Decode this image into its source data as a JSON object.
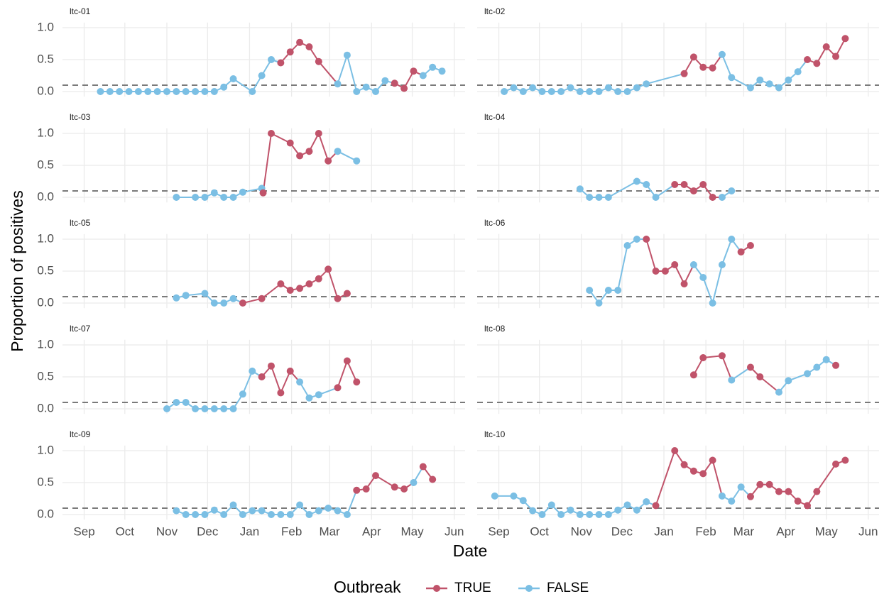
{
  "chart_data": {
    "type": "line",
    "x_label": "Date",
    "y_label": "Proportion of positives",
    "legend_title": "Outbreak",
    "series": [
      {
        "name": "TRUE",
        "color": "#c0536a"
      },
      {
        "name": "FALSE",
        "color": "#7bbfe4"
      }
    ],
    "xlim": [
      -16,
      281
    ],
    "xticks": [
      {
        "value": 0,
        "label": "Sep"
      },
      {
        "value": 30,
        "label": "Oct"
      },
      {
        "value": 61,
        "label": "Nov"
      },
      {
        "value": 91,
        "label": "Dec"
      },
      {
        "value": 122,
        "label": "Jan"
      },
      {
        "value": 153,
        "label": "Feb"
      },
      {
        "value": 181,
        "label": "Mar"
      },
      {
        "value": 212,
        "label": "Apr"
      },
      {
        "value": 242,
        "label": "May"
      },
      {
        "value": 273,
        "label": "Jun"
      }
    ],
    "ylim": [
      -0.08,
      1.08
    ],
    "yticks": [
      {
        "value": 0,
        "label": "0.0"
      },
      0.5,
      {
        "value": 1,
        "label": "1.0"
      }
    ],
    "threshold": 0.1,
    "grid": true,
    "facets": [
      {
        "title": "ltc-01",
        "x": [
          12,
          19,
          26,
          33,
          40,
          47,
          54,
          61,
          68,
          75,
          82,
          89,
          96,
          103,
          110,
          124,
          131,
          138,
          145,
          152,
          159,
          166,
          173,
          187,
          194,
          201,
          208,
          215,
          222,
          229,
          236,
          243,
          250,
          257,
          264
        ],
        "values": [
          0,
          0,
          0,
          0,
          0,
          0,
          0,
          0,
          0,
          0,
          0,
          0,
          0,
          0.07,
          0.2,
          0,
          0.25,
          0.5,
          0.45,
          0.62,
          0.77,
          0.7,
          0.47,
          0.12,
          0.57,
          0,
          0.07,
          0,
          0.17,
          0.13,
          0.05,
          0.32,
          0.25,
          0.38,
          0.32
        ],
        "outbreak": [
          "FALSE",
          "FALSE",
          "FALSE",
          "FALSE",
          "FALSE",
          "FALSE",
          "FALSE",
          "FALSE",
          "FALSE",
          "FALSE",
          "FALSE",
          "FALSE",
          "FALSE",
          "FALSE",
          "FALSE",
          "FALSE",
          "FALSE",
          "FALSE",
          "TRUE",
          "TRUE",
          "TRUE",
          "TRUE",
          "TRUE",
          "FALSE",
          "FALSE",
          "FALSE",
          "FALSE",
          "FALSE",
          "FALSE",
          "TRUE",
          "TRUE",
          "TRUE",
          "FALSE",
          "FALSE",
          "FALSE"
        ]
      },
      {
        "title": "ltc-02",
        "x": [
          4,
          11,
          18,
          25,
          32,
          39,
          46,
          53,
          60,
          67,
          74,
          81,
          88,
          95,
          102,
          109,
          137,
          144,
          151,
          158,
          165,
          172,
          186,
          193,
          200,
          207,
          214,
          221,
          228,
          235,
          242,
          249,
          256
        ],
        "values": [
          0,
          0.06,
          0,
          0.06,
          0,
          0,
          0,
          0.06,
          0,
          0,
          0,
          0.06,
          0,
          0,
          0.06,
          0.12,
          0.28,
          0.54,
          0.38,
          0.37,
          0.58,
          0.22,
          0.06,
          0.18,
          0.12,
          0.06,
          0.18,
          0.31,
          0.5,
          0.44,
          0.7,
          0.55,
          0.83
        ],
        "outbreak": [
          "FALSE",
          "FALSE",
          "FALSE",
          "FALSE",
          "FALSE",
          "FALSE",
          "FALSE",
          "FALSE",
          "FALSE",
          "FALSE",
          "FALSE",
          "FALSE",
          "FALSE",
          "FALSE",
          "FALSE",
          "FALSE",
          "TRUE",
          "TRUE",
          "TRUE",
          "TRUE",
          "FALSE",
          "FALSE",
          "FALSE",
          "FALSE",
          "FALSE",
          "FALSE",
          "FALSE",
          "FALSE",
          "TRUE",
          "TRUE",
          "TRUE",
          "TRUE",
          "TRUE"
        ]
      },
      {
        "title": "ltc-03",
        "x": [
          68,
          82,
          89,
          96,
          103,
          110,
          117,
          131,
          132,
          138,
          152,
          159,
          166,
          173,
          180,
          187,
          201
        ],
        "values": [
          0,
          0,
          0,
          0.07,
          0,
          0,
          0.08,
          0.14,
          0.07,
          1,
          0.85,
          0.65,
          0.72,
          1,
          0.57,
          0.72,
          0.57
        ],
        "outbreak": [
          "FALSE",
          "FALSE",
          "FALSE",
          "FALSE",
          "FALSE",
          "FALSE",
          "FALSE",
          "FALSE",
          "TRUE",
          "TRUE",
          "TRUE",
          "TRUE",
          "TRUE",
          "TRUE",
          "TRUE",
          "FALSE",
          "FALSE"
        ]
      },
      {
        "title": "ltc-04",
        "x": [
          60,
          67,
          74,
          81,
          102,
          109,
          116,
          130,
          137,
          144,
          151,
          158,
          165,
          172
        ],
        "values": [
          0.13,
          0,
          0,
          0,
          0.25,
          0.2,
          0,
          0.2,
          0.2,
          0.1,
          0.2,
          0,
          0,
          0.1
        ],
        "outbreak": [
          "FALSE",
          "FALSE",
          "FALSE",
          "FALSE",
          "FALSE",
          "FALSE",
          "FALSE",
          "TRUE",
          "TRUE",
          "TRUE",
          "TRUE",
          "TRUE",
          "FALSE",
          "FALSE"
        ]
      },
      {
        "title": "ltc-05",
        "x": [
          68,
          75,
          89,
          96,
          103,
          110,
          117,
          131,
          145,
          152,
          159,
          166,
          173,
          180,
          187,
          194
        ],
        "values": [
          0.08,
          0.12,
          0.15,
          0,
          0,
          0.07,
          0,
          0.07,
          0.3,
          0.2,
          0.23,
          0.3,
          0.38,
          0.53,
          0.07,
          0.15
        ],
        "outbreak": [
          "FALSE",
          "FALSE",
          "FALSE",
          "FALSE",
          "FALSE",
          "FALSE",
          "TRUE",
          "TRUE",
          "TRUE",
          "TRUE",
          "TRUE",
          "TRUE",
          "TRUE",
          "TRUE",
          "TRUE",
          "TRUE"
        ]
      },
      {
        "title": "ltc-06",
        "x": [
          67,
          74,
          81,
          88,
          95,
          102,
          109,
          116,
          123,
          130,
          137,
          144,
          151,
          158,
          165,
          172,
          179,
          186
        ],
        "values": [
          0.2,
          0,
          0.2,
          0.2,
          0.9,
          1,
          1,
          0.5,
          0.5,
          0.6,
          0.3,
          0.6,
          0.4,
          0,
          0.6,
          1,
          0.8,
          0.9
        ],
        "outbreak": [
          "FALSE",
          "FALSE",
          "FALSE",
          "FALSE",
          "FALSE",
          "FALSE",
          "TRUE",
          "TRUE",
          "TRUE",
          "TRUE",
          "TRUE",
          "FALSE",
          "FALSE",
          "FALSE",
          "FALSE",
          "FALSE",
          "TRUE",
          "TRUE"
        ]
      },
      {
        "title": "ltc-07",
        "x": [
          61,
          68,
          75,
          82,
          89,
          96,
          103,
          110,
          117,
          124,
          131,
          138,
          145,
          152,
          159,
          166,
          173,
          187,
          194,
          201
        ],
        "values": [
          0,
          0.1,
          0.1,
          0,
          0,
          0,
          0,
          0,
          0.23,
          0.59,
          0.5,
          0.67,
          0.25,
          0.59,
          0.42,
          0.17,
          0.22,
          0.33,
          0.75,
          0.42
        ],
        "outbreak": [
          "FALSE",
          "FALSE",
          "FALSE",
          "FALSE",
          "FALSE",
          "FALSE",
          "FALSE",
          "FALSE",
          "FALSE",
          "FALSE",
          "TRUE",
          "TRUE",
          "TRUE",
          "TRUE",
          "FALSE",
          "FALSE",
          "FALSE",
          "TRUE",
          "TRUE",
          "TRUE"
        ]
      },
      {
        "title": "ltc-08",
        "x": [
          144,
          151,
          165,
          172,
          186,
          193,
          207,
          214,
          228,
          235,
          242,
          249
        ],
        "values": [
          0.53,
          0.8,
          0.83,
          0.45,
          0.65,
          0.5,
          0.26,
          0.44,
          0.55,
          0.65,
          0.77,
          0.68
        ],
        "outbreak": [
          "TRUE",
          "TRUE",
          "TRUE",
          "FALSE",
          "TRUE",
          "TRUE",
          "FALSE",
          "FALSE",
          "FALSE",
          "FALSE",
          "FALSE",
          "TRUE"
        ]
      },
      {
        "title": "ltc-09",
        "x": [
          68,
          75,
          82,
          89,
          96,
          103,
          110,
          117,
          124,
          131,
          138,
          145,
          152,
          159,
          166,
          173,
          180,
          187,
          194,
          201,
          208,
          215,
          229,
          236,
          243,
          250,
          257
        ],
        "values": [
          0.06,
          0,
          0,
          0,
          0.07,
          0,
          0.15,
          0,
          0.06,
          0.06,
          0,
          0,
          0,
          0.15,
          0,
          0.06,
          0.1,
          0.06,
          0,
          0.38,
          0.4,
          0.61,
          0.43,
          0.4,
          0.5,
          0.75,
          0.55
        ],
        "outbreak": [
          "FALSE",
          "FALSE",
          "FALSE",
          "FALSE",
          "FALSE",
          "FALSE",
          "FALSE",
          "FALSE",
          "FALSE",
          "FALSE",
          "FALSE",
          "FALSE",
          "FALSE",
          "FALSE",
          "FALSE",
          "FALSE",
          "FALSE",
          "FALSE",
          "FALSE",
          "TRUE",
          "TRUE",
          "TRUE",
          "TRUE",
          "TRUE",
          "FALSE",
          "TRUE",
          "TRUE"
        ]
      },
      {
        "title": "ltc-10",
        "x": [
          -3,
          11,
          18,
          25,
          32,
          39,
          46,
          53,
          60,
          67,
          74,
          81,
          88,
          95,
          102,
          109,
          116,
          130,
          137,
          144,
          151,
          158,
          165,
          172,
          179,
          186,
          193,
          200,
          207,
          214,
          221,
          228,
          235,
          249,
          256
        ],
        "values": [
          0.29,
          0.29,
          0.22,
          0.06,
          0,
          0.15,
          0,
          0.07,
          0,
          0,
          0,
          0,
          0.07,
          0.15,
          0.07,
          0.2,
          0.14,
          1,
          0.78,
          0.68,
          0.64,
          0.85,
          0.29,
          0.21,
          0.43,
          0.28,
          0.47,
          0.47,
          0.36,
          0.36,
          0.21,
          0.14,
          0.36,
          0.79,
          0.85
        ],
        "outbreak": [
          "FALSE",
          "FALSE",
          "FALSE",
          "FALSE",
          "FALSE",
          "FALSE",
          "FALSE",
          "FALSE",
          "FALSE",
          "FALSE",
          "FALSE",
          "FALSE",
          "FALSE",
          "FALSE",
          "FALSE",
          "FALSE",
          "TRUE",
          "TRUE",
          "TRUE",
          "TRUE",
          "TRUE",
          "TRUE",
          "FALSE",
          "FALSE",
          "FALSE",
          "TRUE",
          "TRUE",
          "TRUE",
          "TRUE",
          "TRUE",
          "TRUE",
          "TRUE",
          "TRUE",
          "TRUE",
          "TRUE"
        ]
      }
    ]
  }
}
